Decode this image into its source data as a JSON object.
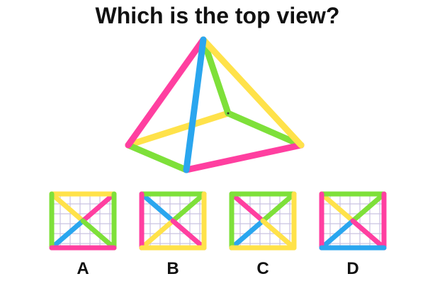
{
  "question": "Which is the top view?",
  "colors": {
    "pink": "#ff3fa0",
    "blue": "#2aa6ef",
    "yellow": "#ffe24a",
    "green": "#7ee03a",
    "grid": "#c9c3e2"
  },
  "options": [
    {
      "label": "A"
    },
    {
      "label": "B"
    },
    {
      "label": "C"
    },
    {
      "label": "D"
    }
  ]
}
